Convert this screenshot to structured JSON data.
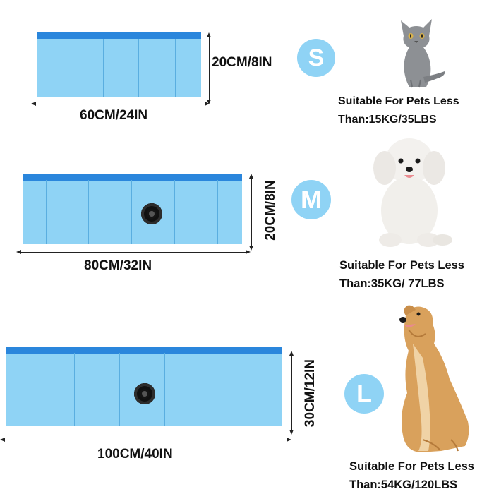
{
  "sizes": [
    {
      "badge": "S",
      "width_label": "60CM/24IN",
      "height_label": "20CM/8IN",
      "suitable_line1": "Suitable For Pets Less",
      "suitable_line2": "Than:15KG/35LBS",
      "pet_icon": "cat-icon"
    },
    {
      "badge": "M",
      "width_label": "80CM/32IN",
      "height_label": "20CM/8IN",
      "suitable_line1": "Suitable For Pets Less",
      "suitable_line2": "Than:35KG/ 77LBS",
      "pet_icon": "small-dog-icon"
    },
    {
      "badge": "L",
      "width_label": "100CM/40IN",
      "height_label": "30CM/12IN",
      "suitable_line1": "Suitable For Pets Less",
      "suitable_line2": "Than:54KG/120LBS",
      "pet_icon": "golden-retriever-icon"
    }
  ],
  "colors": {
    "pool_fill": "#8fd3f5",
    "pool_rim": "#2a86dc",
    "badge_fill": "#8fd3f5"
  }
}
